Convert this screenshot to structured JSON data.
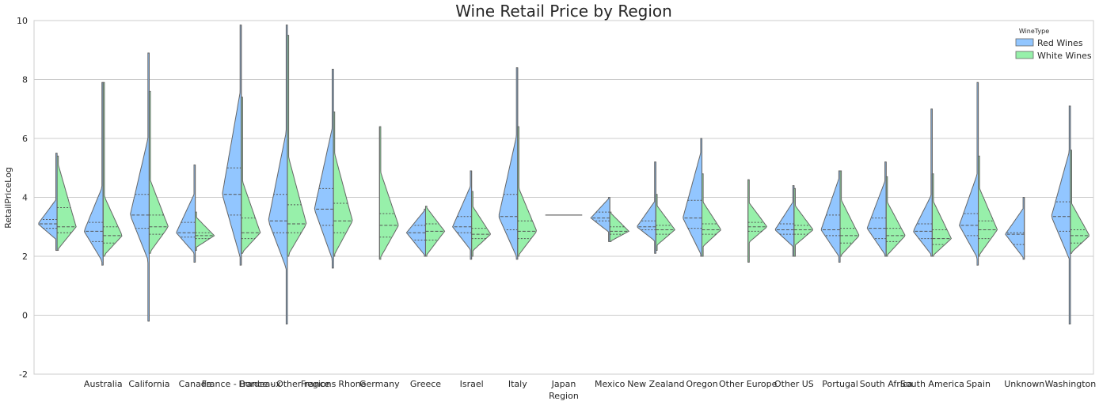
{
  "chart_data": {
    "type": "violin",
    "title": "Wine Retail Price by Region",
    "xlabel": "Region",
    "ylabel": "RetailPriceLog",
    "ylim": [
      -2,
      10
    ],
    "yticks": [
      -2,
      0,
      2,
      4,
      6,
      8,
      10
    ],
    "grid": true,
    "legend": {
      "title": "WineType",
      "position": "top-right"
    },
    "categories": [
      "",
      "Australia",
      "California",
      "Canada",
      "France - Bordeaux",
      "France - Other regions",
      "France - Rhone",
      "Germany",
      "Greece",
      "Israel",
      "Italy",
      "Japan",
      "Mexico",
      "New Zealand",
      "Oregon",
      "Other Europe",
      "Other US",
      "Portugal",
      "South Africa",
      "South America",
      "Spain",
      "Unknown",
      "Washington"
    ],
    "series": [
      {
        "name": "Red Wines",
        "color": "#92c6ff",
        "values": [
          {
            "min": 2.2,
            "q1": 2.95,
            "median": 3.1,
            "q3": 3.25,
            "max": 5.5
          },
          {
            "min": 1.7,
            "q1": 2.5,
            "median": 2.85,
            "q3": 3.15,
            "max": 7.9
          },
          {
            "min": -0.2,
            "q1": 2.95,
            "median": 3.4,
            "q3": 4.1,
            "max": 8.9
          },
          {
            "min": 1.8,
            "q1": 2.65,
            "median": 2.8,
            "q3": 3.15,
            "max": 5.1
          },
          {
            "min": 1.7,
            "q1": 3.4,
            "median": 4.1,
            "q3": 5.0,
            "max": 9.85
          },
          {
            "min": -0.3,
            "q1": 2.8,
            "median": 3.2,
            "q3": 4.1,
            "max": 9.85
          },
          {
            "min": 1.6,
            "q1": 3.05,
            "median": 3.6,
            "q3": 4.3,
            "max": 8.35
          },
          null,
          {
            "min": 2.0,
            "q1": 2.55,
            "median": 2.8,
            "q3": 3.05,
            "max": 3.6
          },
          {
            "min": 1.9,
            "q1": 2.8,
            "median": 3.0,
            "q3": 3.35,
            "max": 4.9
          },
          {
            "min": 1.9,
            "q1": 2.9,
            "median": 3.35,
            "q3": 4.1,
            "max": 8.4
          },
          {
            "min": 3.4,
            "q1": 3.4,
            "median": 3.4,
            "q3": 3.4,
            "max": 3.4
          },
          {
            "min": 2.5,
            "q1": 3.2,
            "median": 3.3,
            "q3": 3.5,
            "max": 4.0
          },
          {
            "min": 2.1,
            "q1": 2.9,
            "median": 3.0,
            "q3": 3.2,
            "max": 5.2
          },
          {
            "min": 2.0,
            "q1": 2.95,
            "median": 3.3,
            "q3": 3.9,
            "max": 6.0
          },
          null,
          {
            "min": 2.0,
            "q1": 2.75,
            "median": 2.9,
            "q3": 3.1,
            "max": 4.4
          },
          {
            "min": 1.8,
            "q1": 2.7,
            "median": 2.9,
            "q3": 3.4,
            "max": 4.9
          },
          {
            "min": 2.0,
            "q1": 2.6,
            "median": 2.95,
            "q3": 3.3,
            "max": 5.2
          },
          {
            "min": 2.0,
            "q1": 2.6,
            "median": 2.85,
            "q3": 3.1,
            "max": 7.0
          },
          {
            "min": 1.7,
            "q1": 2.7,
            "median": 3.05,
            "q3": 3.45,
            "max": 7.9
          },
          {
            "min": 1.9,
            "q1": 2.4,
            "median": 2.75,
            "q3": 2.8,
            "max": 4.0
          },
          {
            "min": -0.3,
            "q1": 2.85,
            "median": 3.35,
            "q3": 3.85,
            "max": 7.1
          }
        ]
      },
      {
        "name": "White Wines",
        "color": "#97f0aa",
        "values": [
          {
            "min": 2.2,
            "q1": 2.8,
            "median": 3.0,
            "q3": 3.65,
            "max": 5.4
          },
          {
            "min": 2.0,
            "q1": 2.45,
            "median": 2.7,
            "q3": 3.0,
            "max": 7.9
          },
          {
            "min": 2.1,
            "q1": 2.75,
            "median": 3.0,
            "q3": 3.4,
            "max": 7.6
          },
          {
            "min": 2.2,
            "q1": 2.6,
            "median": 2.7,
            "q3": 2.8,
            "max": 3.5
          },
          {
            "min": 2.1,
            "q1": 2.6,
            "median": 2.8,
            "q3": 3.3,
            "max": 7.4
          },
          {
            "min": 2.0,
            "q1": 2.8,
            "median": 3.1,
            "q3": 3.75,
            "max": 9.5
          },
          {
            "min": 2.0,
            "q1": 2.8,
            "median": 3.2,
            "q3": 3.8,
            "max": 6.9
          },
          {
            "min": 1.9,
            "q1": 2.65,
            "median": 3.05,
            "q3": 3.45,
            "max": 6.4
          },
          {
            "min": 2.0,
            "q1": 2.55,
            "median": 2.85,
            "q3": 3.1,
            "max": 3.7
          },
          {
            "min": 2.0,
            "q1": 2.6,
            "median": 2.75,
            "q3": 2.95,
            "max": 4.2
          },
          {
            "min": 2.0,
            "q1": 2.6,
            "median": 2.85,
            "q3": 3.2,
            "max": 6.4
          },
          null,
          {
            "min": 2.5,
            "q1": 2.75,
            "median": 2.85,
            "q3": 3.0,
            "max": 3.5
          },
          {
            "min": 2.2,
            "q1": 2.75,
            "median": 2.9,
            "q3": 3.05,
            "max": 4.1
          },
          {
            "min": 2.0,
            "q1": 2.75,
            "median": 2.9,
            "q3": 3.1,
            "max": 4.8
          },
          {
            "min": 1.8,
            "q1": 2.85,
            "median": 3.0,
            "q3": 3.15,
            "max": 4.6
          },
          {
            "min": 2.0,
            "q1": 2.75,
            "median": 2.9,
            "q3": 3.05,
            "max": 4.3
          },
          {
            "min": 2.0,
            "q1": 2.45,
            "median": 2.7,
            "q3": 2.95,
            "max": 4.9
          },
          {
            "min": 2.0,
            "q1": 2.5,
            "median": 2.7,
            "q3": 2.95,
            "max": 4.7
          },
          {
            "min": 2.0,
            "q1": 2.4,
            "median": 2.6,
            "q3": 2.9,
            "max": 4.8
          },
          {
            "min": 2.0,
            "q1": 2.6,
            "median": 2.9,
            "q3": 3.2,
            "max": 5.4
          },
          null,
          {
            "min": 2.1,
            "q1": 2.45,
            "median": 2.7,
            "q3": 2.9,
            "max": 5.6
          }
        ]
      }
    ]
  }
}
